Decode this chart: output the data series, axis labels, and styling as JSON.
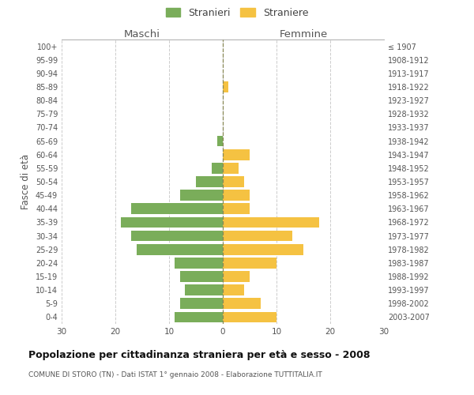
{
  "age_groups": [
    "100+",
    "95-99",
    "90-94",
    "85-89",
    "80-84",
    "75-79",
    "70-74",
    "65-69",
    "60-64",
    "55-59",
    "50-54",
    "45-49",
    "40-44",
    "35-39",
    "30-34",
    "25-29",
    "20-24",
    "15-19",
    "10-14",
    "5-9",
    "0-4"
  ],
  "birth_years": [
    "≤ 1907",
    "1908-1912",
    "1913-1917",
    "1918-1922",
    "1923-1927",
    "1928-1932",
    "1933-1937",
    "1938-1942",
    "1943-1947",
    "1948-1952",
    "1953-1957",
    "1958-1962",
    "1963-1967",
    "1968-1972",
    "1973-1977",
    "1978-1982",
    "1983-1987",
    "1988-1992",
    "1993-1997",
    "1998-2002",
    "2003-2007"
  ],
  "males": [
    0,
    0,
    0,
    0,
    0,
    0,
    0,
    1,
    0,
    2,
    5,
    8,
    17,
    19,
    17,
    16,
    9,
    8,
    7,
    8,
    9
  ],
  "females": [
    0,
    0,
    0,
    1,
    0,
    0,
    0,
    0,
    5,
    3,
    4,
    5,
    5,
    18,
    13,
    15,
    10,
    5,
    4,
    7,
    10
  ],
  "male_color": "#7aad5a",
  "female_color": "#f5c242",
  "center_line_color": "#888855",
  "grid_color": "#cccccc",
  "background_color": "#ffffff",
  "title": "Popolazione per cittadinanza straniera per età e sesso - 2008",
  "subtitle": "COMUNE DI STORO (TN) - Dati ISTAT 1° gennaio 2008 - Elaborazione TUTTITALIA.IT",
  "ylabel_left": "Fasce di età",
  "xlabel_left": "Maschi",
  "xlabel_right": "Femmine",
  "legend_males": "Stranieri",
  "legend_females": "Straniere",
  "xlim": 30,
  "bar_height": 0.8
}
